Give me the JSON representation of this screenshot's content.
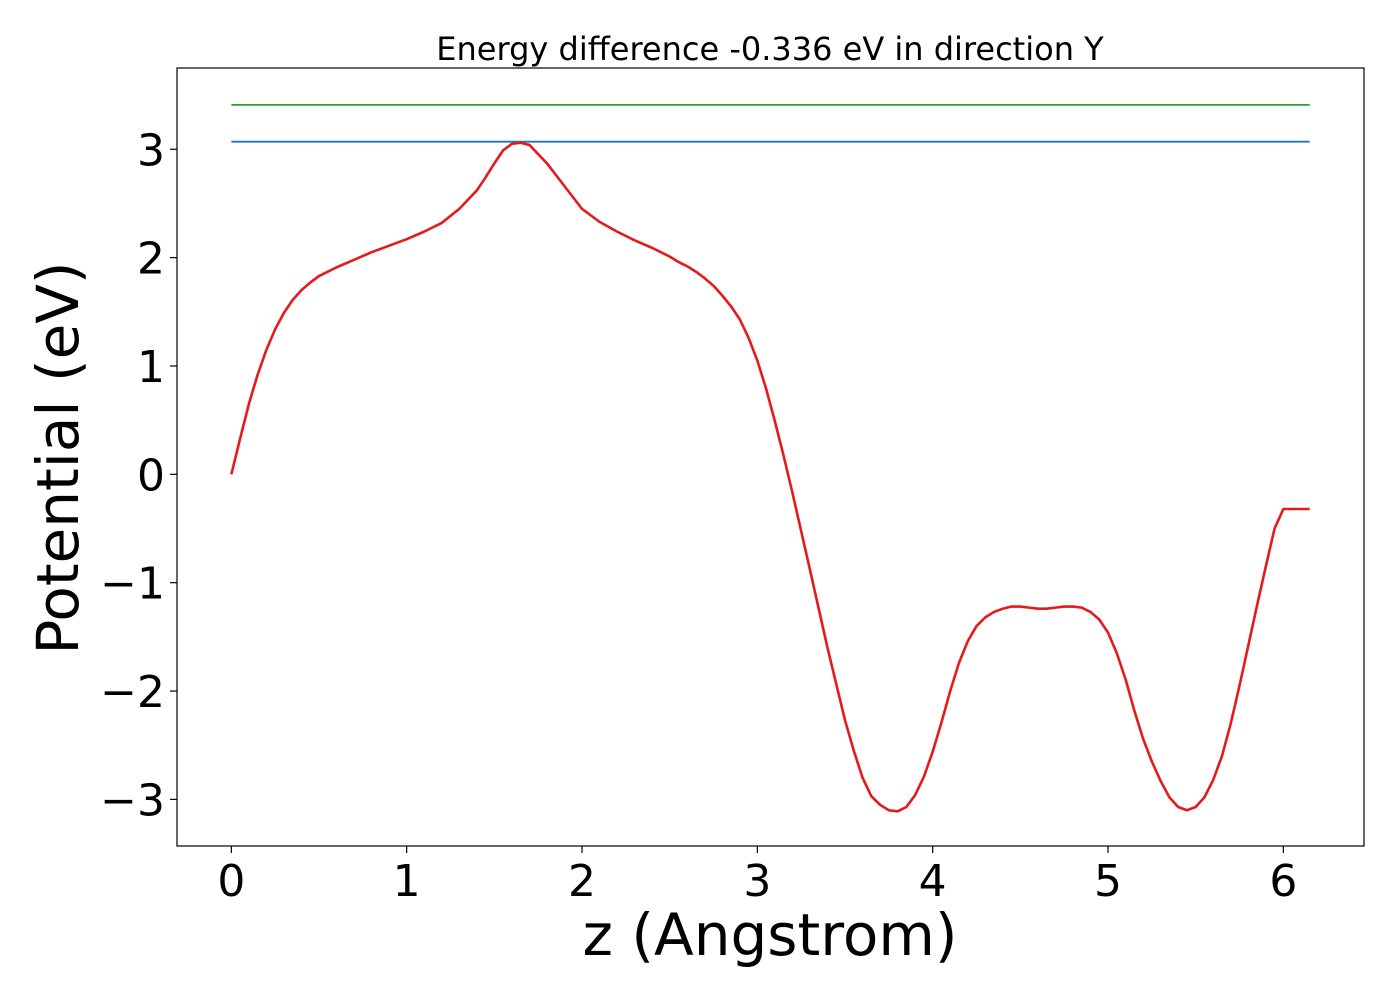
{
  "chart_data": {
    "type": "line",
    "title": "Energy difference -0.336 eV in direction Y",
    "xlabel": "z (Angstrom)",
    "ylabel": "Potential (eV)",
    "xlim": [
      -0.31,
      6.46
    ],
    "ylim": [
      -3.43,
      3.75
    ],
    "xticks": [
      0,
      1,
      2,
      3,
      4,
      5,
      6
    ],
    "xtick_labels": [
      "0",
      "1",
      "2",
      "3",
      "4",
      "5",
      "6"
    ],
    "yticks": [
      -3,
      -2,
      -1,
      0,
      1,
      2,
      3
    ],
    "ytick_labels": [
      "−3",
      "−2",
      "−1",
      "0",
      "1",
      "2",
      "3"
    ],
    "grid": false,
    "series": [
      {
        "color": "#2ca02c",
        "x": [
          0,
          6.15
        ],
        "y": [
          3.41,
          3.41
        ]
      },
      {
        "color": "#1f77b4",
        "x": [
          0,
          6.15
        ],
        "y": [
          3.07,
          3.07
        ]
      },
      {
        "color": "#e41a1c",
        "x": [
          0,
          0.05,
          0.1,
          0.15,
          0.2,
          0.25,
          0.3,
          0.35,
          0.4,
          0.45,
          0.5,
          0.55,
          0.6,
          0.7,
          0.8,
          0.9,
          1.0,
          1.1,
          1.2,
          1.3,
          1.4,
          1.45,
          1.5,
          1.55,
          1.6,
          1.65,
          1.7,
          1.8,
          1.9,
          2.0,
          2.1,
          2.2,
          2.3,
          2.4,
          2.5,
          2.55,
          2.6,
          2.65,
          2.7,
          2.75,
          2.8,
          2.85,
          2.9,
          2.95,
          3.0,
          3.05,
          3.1,
          3.15,
          3.2,
          3.3,
          3.4,
          3.5,
          3.55,
          3.6,
          3.65,
          3.7,
          3.75,
          3.8,
          3.85,
          3.9,
          3.95,
          4.0,
          4.05,
          4.1,
          4.15,
          4.2,
          4.25,
          4.3,
          4.35,
          4.4,
          4.45,
          4.5,
          4.55,
          4.6,
          4.65,
          4.7,
          4.75,
          4.8,
          4.85,
          4.9,
          4.95,
          5.0,
          5.05,
          5.1,
          5.15,
          5.2,
          5.25,
          5.3,
          5.35,
          5.4,
          5.45,
          5.5,
          5.55,
          5.6,
          5.65,
          5.7,
          5.75,
          5.8,
          5.85,
          5.9,
          5.95,
          6.0,
          6.05,
          6.1,
          6.15
        ],
        "y": [
          0.0,
          0.33,
          0.65,
          0.92,
          1.15,
          1.34,
          1.49,
          1.61,
          1.7,
          1.77,
          1.83,
          1.87,
          1.91,
          1.98,
          2.05,
          2.11,
          2.17,
          2.24,
          2.32,
          2.45,
          2.62,
          2.74,
          2.87,
          2.99,
          3.05,
          3.06,
          3.04,
          2.87,
          2.66,
          2.45,
          2.33,
          2.24,
          2.16,
          2.09,
          2.01,
          1.96,
          1.92,
          1.87,
          1.81,
          1.74,
          1.65,
          1.55,
          1.43,
          1.26,
          1.05,
          0.79,
          0.49,
          0.17,
          -0.17,
          -0.88,
          -1.6,
          -2.27,
          -2.55,
          -2.8,
          -2.97,
          -3.05,
          -3.1,
          -3.11,
          -3.07,
          -2.96,
          -2.79,
          -2.56,
          -2.29,
          -2.0,
          -1.74,
          -1.54,
          -1.4,
          -1.32,
          -1.27,
          -1.24,
          -1.22,
          -1.22,
          -1.23,
          -1.24,
          -1.24,
          -1.23,
          -1.22,
          -1.22,
          -1.23,
          -1.27,
          -1.34,
          -1.46,
          -1.65,
          -1.89,
          -2.18,
          -2.44,
          -2.65,
          -2.83,
          -2.98,
          -3.07,
          -3.1,
          -3.07,
          -2.98,
          -2.82,
          -2.6,
          -2.3,
          -1.95,
          -1.58,
          -1.21,
          -0.85,
          -0.5,
          -0.32,
          -0.32,
          -0.32,
          -0.32
        ]
      }
    ]
  }
}
